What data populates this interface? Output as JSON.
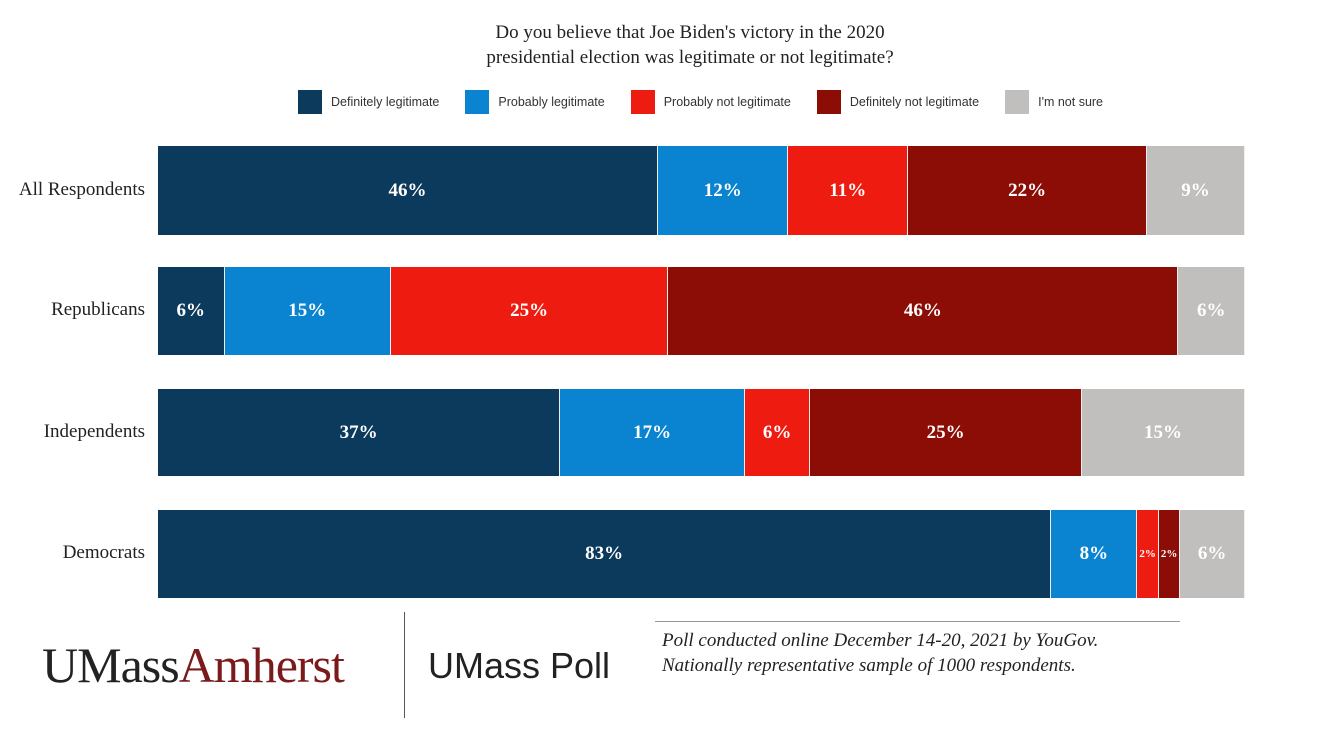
{
  "chart_data": {
    "type": "bar",
    "orientation": "horizontal-stacked",
    "title": "Do you believe that Joe Biden's victory in the 2020 presidential election was legitimate or not legitimate?",
    "title_lines": [
      "Do you believe that Joe Biden's victory in the 2020",
      "presidential election was legitimate or not legitimate?"
    ],
    "legend_placement": "top",
    "categories": [
      "All Respondents",
      "Republicans",
      "Independents",
      "Democrats"
    ],
    "series": [
      {
        "name": "Definitely legitimate",
        "color": "#0b3a5c",
        "values": [
          46,
          6,
          37,
          83
        ]
      },
      {
        "name": "Probably legitimate",
        "color": "#0a84d0",
        "values": [
          12,
          15,
          17,
          8
        ]
      },
      {
        "name": "Probably not legitimate",
        "color": "#ee1c10",
        "values": [
          11,
          25,
          6,
          2
        ]
      },
      {
        "name": "Definitely not legitimate",
        "color": "#8b0d05",
        "values": [
          22,
          46,
          25,
          2
        ]
      },
      {
        "name": "I'm not sure",
        "color": "#c0bfbd",
        "values": [
          9,
          6,
          15,
          6
        ]
      }
    ]
  },
  "footer": {
    "logo_part1": "UMass",
    "logo_part2": "Amherst",
    "logo_colors": [
      "#222222",
      "#7a1a1a"
    ],
    "poll_name": "UMass Poll",
    "note_lines": [
      "Poll conducted online December 14-20, 2021 by YouGov.",
      "Nationally representative sample of 1000 respondents."
    ]
  }
}
